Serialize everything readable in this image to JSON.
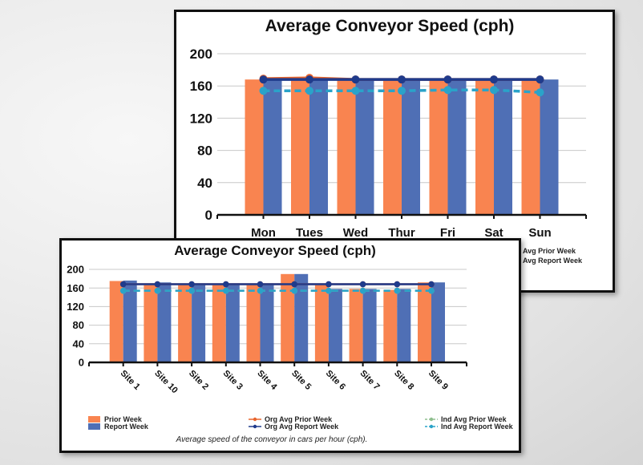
{
  "colors": {
    "prior": "#f98450",
    "report": "#4f6fb5",
    "org_prior": "#e8642c",
    "org_report": "#1f3b8c",
    "ind_prior": "#8fbf8f",
    "ind_report": "#2aa3c9"
  },
  "chart_data": [
    {
      "type": "bar",
      "title": "Average Conveyor Speed (cph)",
      "categories": [
        "Mon",
        "Tues",
        "Wed",
        "Thur",
        "Fri",
        "Sat",
        "Sun"
      ],
      "ylim": [
        0,
        200
      ],
      "yticks": [
        "0",
        "40",
        "80",
        "120",
        "160",
        "200"
      ],
      "grid": true,
      "series": [
        {
          "name": "Prior Week",
          "kind": "bar",
          "values": [
            168,
            170,
            168,
            168,
            168,
            168,
            168
          ]
        },
        {
          "name": "Report Week",
          "kind": "bar",
          "values": [
            168,
            168,
            168,
            168,
            168,
            168,
            168
          ]
        },
        {
          "name": "Org Avg Prior Week",
          "kind": "line",
          "values": [
            169,
            170,
            168,
            168,
            168,
            168,
            168
          ]
        },
        {
          "name": "Org Avg Report Week",
          "kind": "line",
          "values": [
            168,
            168,
            168,
            168,
            168,
            168,
            168
          ]
        },
        {
          "name": "Ind Avg Report Week",
          "kind": "dashed-line",
          "values": [
            154,
            154,
            154,
            154,
            155,
            155,
            152
          ]
        }
      ],
      "legend_visible": [
        "Avg Prior Week",
        "Avg Report Week"
      ]
    },
    {
      "type": "bar",
      "title": "Average Conveyor Speed (cph)",
      "categories": [
        "Site 1",
        "Site 10",
        "Site 2",
        "Site 3",
        "Site 4",
        "Site 5",
        "Site 6",
        "Site 7",
        "Site 8",
        "Site 9"
      ],
      "ylim": [
        0,
        200
      ],
      "yticks": [
        "0",
        "40",
        "80",
        "120",
        "160",
        "200"
      ],
      "grid": true,
      "series": [
        {
          "name": "Prior Week",
          "kind": "bar",
          "values": [
            175,
            170,
            168,
            168,
            168,
            190,
            168,
            158,
            156,
            172
          ]
        },
        {
          "name": "Report Week",
          "kind": "bar",
          "values": [
            176,
            172,
            170,
            170,
            170,
            190,
            158,
            158,
            158,
            172
          ]
        },
        {
          "name": "Org Avg Prior Week",
          "kind": "line",
          "values": [
            168,
            168,
            168,
            168,
            168,
            168,
            168,
            168,
            168,
            168
          ]
        },
        {
          "name": "Org Avg Report Week",
          "kind": "line",
          "values": [
            168,
            168,
            168,
            168,
            168,
            168,
            168,
            168,
            168,
            168
          ]
        },
        {
          "name": "Ind Avg Prior Week",
          "kind": "dashed-line",
          "values": [
            154,
            154,
            154,
            154,
            154,
            154,
            154,
            154,
            154,
            154
          ]
        },
        {
          "name": "Ind Avg Report Week",
          "kind": "dashed-line",
          "values": [
            154,
            154,
            154,
            154,
            154,
            154,
            154,
            154,
            154,
            154
          ]
        }
      ],
      "legend": [
        "Prior Week",
        "Report Week",
        "Org Avg Prior Week",
        "Org Avg Report Week",
        "Ind Avg Prior Week",
        "Ind Avg Report Week"
      ],
      "caption": "Average speed of the conveyor in cars per hour (cph)."
    }
  ]
}
